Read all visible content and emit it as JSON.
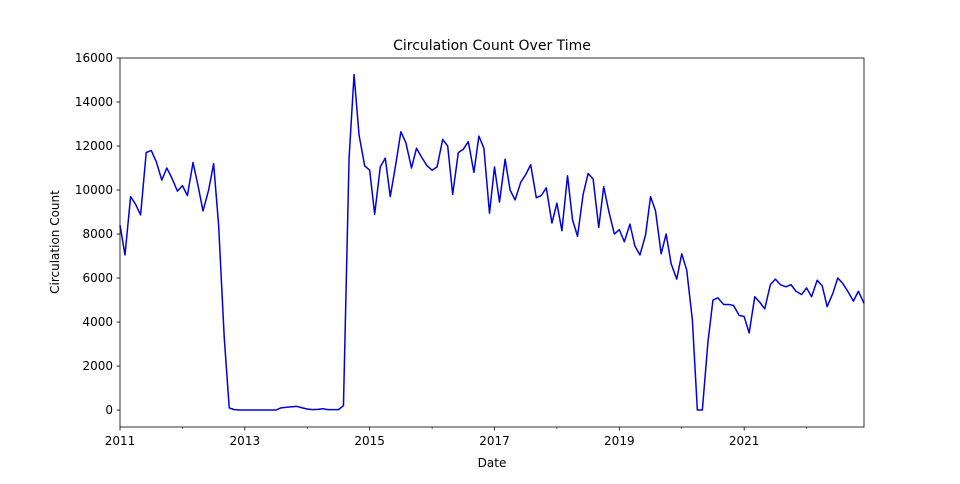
{
  "chart_data": {
    "type": "line",
    "title": "Circulation Count Over Time",
    "x_label": "Date",
    "y_label": "Circulation Count",
    "xlim": [
      2011,
      2022.92
    ],
    "ylim": [
      -770,
      16000
    ],
    "xticks": [
      2011,
      2013,
      2015,
      2017,
      2019,
      2021
    ],
    "xminorticks": [
      2012,
      2014,
      2016,
      2018,
      2020,
      2022
    ],
    "yticks": [
      0,
      2000,
      4000,
      6000,
      8000,
      10000,
      12000,
      14000,
      16000
    ],
    "x": [
      2011.0,
      2011.08,
      2011.17,
      2011.25,
      2011.33,
      2011.42,
      2011.5,
      2011.58,
      2011.67,
      2011.75,
      2011.83,
      2011.92,
      2012.0,
      2012.08,
      2012.17,
      2012.25,
      2012.33,
      2012.42,
      2012.5,
      2012.58,
      2012.67,
      2012.75,
      2012.83,
      2012.92,
      2013.0,
      2013.08,
      2013.17,
      2013.25,
      2013.33,
      2013.42,
      2013.5,
      2013.58,
      2013.67,
      2013.75,
      2013.83,
      2013.92,
      2014.0,
      2014.08,
      2014.17,
      2014.25,
      2014.33,
      2014.42,
      2014.5,
      2014.58,
      2014.67,
      2014.75,
      2014.83,
      2014.92,
      2015.0,
      2015.08,
      2015.17,
      2015.25,
      2015.33,
      2015.42,
      2015.5,
      2015.58,
      2015.67,
      2015.75,
      2015.83,
      2015.92,
      2016.0,
      2016.08,
      2016.17,
      2016.25,
      2016.33,
      2016.42,
      2016.5,
      2016.58,
      2016.67,
      2016.75,
      2016.83,
      2016.92,
      2017.0,
      2017.08,
      2017.17,
      2017.25,
      2017.33,
      2017.42,
      2017.5,
      2017.58,
      2017.67,
      2017.75,
      2017.83,
      2017.92,
      2018.0,
      2018.08,
      2018.17,
      2018.25,
      2018.33,
      2018.42,
      2018.5,
      2018.58,
      2018.67,
      2018.75,
      2018.83,
      2018.92,
      2019.0,
      2019.08,
      2019.17,
      2019.25,
      2019.33,
      2019.42,
      2019.5,
      2019.58,
      2019.67,
      2019.75,
      2019.83,
      2019.92,
      2020.0,
      2020.08,
      2020.17,
      2020.25,
      2020.33,
      2020.42,
      2020.5,
      2020.58,
      2020.67,
      2020.75,
      2020.83,
      2020.92,
      2021.0,
      2021.08,
      2021.17,
      2021.25,
      2021.33,
      2021.42,
      2021.5,
      2021.58,
      2021.67,
      2021.75,
      2021.83,
      2021.92,
      2022.0,
      2022.08,
      2022.17,
      2022.25,
      2022.33,
      2022.42,
      2022.5,
      2022.58,
      2022.67,
      2022.75,
      2022.83,
      2022.92
    ],
    "series": [
      {
        "name": "Circulation Count",
        "color": "#0000dd",
        "values": [
          8400,
          7050,
          9700,
          9350,
          8870,
          11700,
          11800,
          11300,
          10450,
          11000,
          10550,
          9950,
          10200,
          9750,
          11250,
          10200,
          9050,
          10000,
          11200,
          8400,
          3300,
          100,
          20,
          0,
          0,
          0,
          0,
          0,
          0,
          0,
          0,
          100,
          130,
          150,
          170,
          100,
          50,
          20,
          30,
          60,
          20,
          20,
          20,
          200,
          11450,
          15250,
          12500,
          11100,
          10900,
          8900,
          11050,
          11450,
          9700,
          11200,
          12650,
          12150,
          11000,
          11900,
          11500,
          11100,
          10900,
          11050,
          12300,
          12000,
          9800,
          11700,
          11850,
          12200,
          10800,
          12450,
          11900,
          8950,
          11050,
          9450,
          11400,
          10000,
          9550,
          10350,
          10700,
          11150,
          9650,
          9750,
          10100,
          8500,
          9400,
          8150,
          10650,
          8650,
          7900,
          9800,
          10750,
          10500,
          8300,
          10150,
          9050,
          8000,
          8200,
          7650,
          8450,
          7450,
          7050,
          7950,
          9700,
          9050,
          7100,
          8000,
          6650,
          5950,
          7100,
          6350,
          4100,
          0,
          0,
          3100,
          5000,
          5100,
          4800,
          4800,
          4750,
          4300,
          4250,
          3500,
          5150,
          4900,
          4600,
          5700,
          5950,
          5700,
          5600,
          5700,
          5400,
          5250,
          5550,
          5150,
          5900,
          5650,
          4700,
          5300,
          6000,
          5750,
          5350,
          4950,
          5400,
          4850
        ]
      }
    ]
  }
}
